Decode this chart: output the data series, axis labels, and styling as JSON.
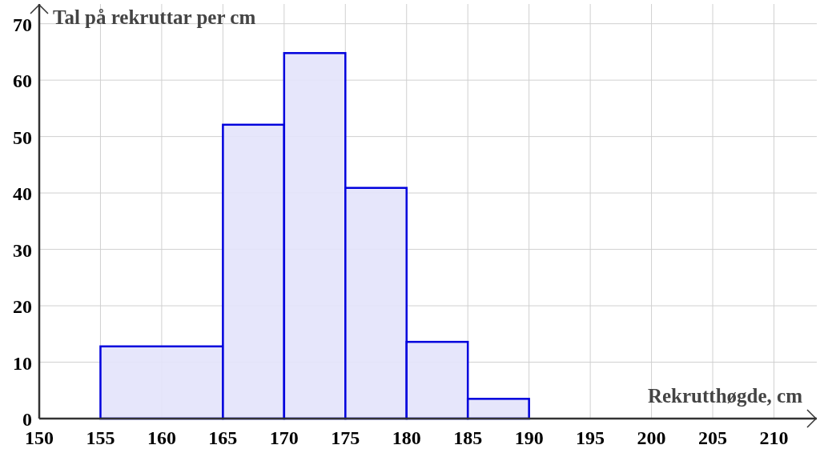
{
  "chart_data": {
    "type": "histogram",
    "xlabel": "Rekrutthøgde, cm",
    "ylabel": "Tal på rekruttar per cm",
    "bins": [
      155,
      165,
      170,
      175,
      180,
      185,
      190
    ],
    "values": [
      12.8,
      52.1,
      64.8,
      40.9,
      13.6,
      3.5
    ],
    "color": "#0000dd",
    "xlim": [
      150,
      213.5
    ],
    "ylim": [
      0,
      73.5
    ],
    "xticks": [
      150,
      155,
      160,
      165,
      170,
      175,
      180,
      185,
      190,
      195,
      200,
      205,
      210
    ],
    "yticks": [
      0,
      10,
      20,
      30,
      40,
      50,
      60,
      70
    ],
    "grid": true
  }
}
